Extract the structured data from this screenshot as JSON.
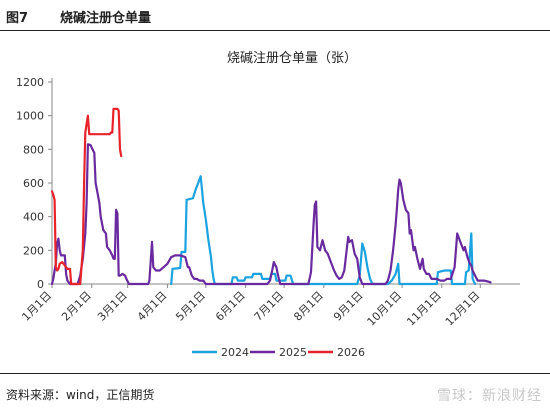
{
  "header": {
    "figure_no": "图7",
    "title": "烧碱注册仓单量"
  },
  "footer": {
    "source": "资料来源：wind，正信期货",
    "watermark": "雪球：新浪财经"
  },
  "colors": {
    "2024": "#1aa3e0",
    "2025": "#6a2a9f",
    "2026": "#e8232a"
  },
  "chart_data": {
    "type": "line",
    "title": "烧碱注册仓单量（张）",
    "xlabel": "",
    "ylabel": "",
    "ylim": [
      0,
      1200
    ],
    "yticks": [
      0,
      200,
      400,
      600,
      800,
      1000,
      1200
    ],
    "xlim": [
      0,
      365
    ],
    "xticks": [
      {
        "label": "1月1日",
        "day": 0
      },
      {
        "label": "2月1日",
        "day": 31
      },
      {
        "label": "3月1日",
        "day": 59
      },
      {
        "label": "4月1日",
        "day": 90
      },
      {
        "label": "5月1日",
        "day": 120
      },
      {
        "label": "6月1日",
        "day": 151
      },
      {
        "label": "7月1日",
        "day": 181
      },
      {
        "label": "8月1日",
        "day": 212
      },
      {
        "label": "9月1日",
        "day": 243
      },
      {
        "label": "10月1日",
        "day": 273
      },
      {
        "label": "11月1日",
        "day": 304
      },
      {
        "label": "12月1日",
        "day": 334
      }
    ],
    "legend_position": "bottom",
    "series": [
      {
        "name": "2024",
        "points": [
          [
            93,
            0
          ],
          [
            94,
            90
          ],
          [
            100,
            95
          ],
          [
            101,
            190
          ],
          [
            104,
            190
          ],
          [
            105,
            500
          ],
          [
            110,
            510
          ],
          [
            112,
            560
          ],
          [
            114,
            600
          ],
          [
            116,
            640
          ],
          [
            117,
            560
          ],
          [
            118,
            480
          ],
          [
            120,
            380
          ],
          [
            122,
            260
          ],
          [
            124,
            160
          ],
          [
            125,
            80
          ],
          [
            126,
            30
          ],
          [
            127,
            0
          ],
          [
            140,
            0
          ],
          [
            141,
            40
          ],
          [
            144,
            40
          ],
          [
            145,
            20
          ],
          [
            150,
            20
          ],
          [
            151,
            40
          ],
          [
            156,
            40
          ],
          [
            157,
            60
          ],
          [
            163,
            60
          ],
          [
            164,
            30
          ],
          [
            170,
            30
          ],
          [
            171,
            60
          ],
          [
            174,
            60
          ],
          [
            175,
            20
          ],
          [
            182,
            20
          ],
          [
            183,
            50
          ],
          [
            186,
            50
          ],
          [
            188,
            0
          ],
          [
            238,
            0
          ],
          [
            240,
            50
          ],
          [
            242,
            240
          ],
          [
            244,
            190
          ],
          [
            246,
            100
          ],
          [
            248,
            30
          ],
          [
            250,
            0
          ],
          [
            262,
            0
          ],
          [
            265,
            20
          ],
          [
            268,
            60
          ],
          [
            270,
            120
          ],
          [
            271,
            0
          ],
          [
            300,
            0
          ],
          [
            301,
            70
          ],
          [
            306,
            80
          ],
          [
            311,
            80
          ],
          [
            312,
            0
          ],
          [
            322,
            0
          ],
          [
            323,
            70
          ],
          [
            325,
            80
          ],
          [
            327,
            300
          ],
          [
            328,
            30
          ],
          [
            330,
            0
          ]
        ]
      },
      {
        "name": "2025",
        "points": [
          [
            0,
            0
          ],
          [
            1,
            30
          ],
          [
            2,
            80
          ],
          [
            3,
            120
          ],
          [
            4,
            240
          ],
          [
            5,
            270
          ],
          [
            6,
            200
          ],
          [
            7,
            170
          ],
          [
            10,
            170
          ],
          [
            11,
            60
          ],
          [
            12,
            20
          ],
          [
            14,
            0
          ],
          [
            20,
            0
          ],
          [
            22,
            50
          ],
          [
            24,
            150
          ],
          [
            26,
            300
          ],
          [
            27,
            480
          ],
          [
            28,
            830
          ],
          [
            30,
            825
          ],
          [
            31,
            810
          ],
          [
            33,
            780
          ],
          [
            34,
            600
          ],
          [
            35,
            560
          ],
          [
            37,
            480
          ],
          [
            38,
            400
          ],
          [
            40,
            320
          ],
          [
            42,
            300
          ],
          [
            43,
            220
          ],
          [
            45,
            200
          ],
          [
            47,
            170
          ],
          [
            48,
            150
          ],
          [
            49,
            150
          ],
          [
            50,
            440
          ],
          [
            51,
            420
          ],
          [
            52,
            50
          ],
          [
            53,
            50
          ],
          [
            55,
            60
          ],
          [
            57,
            50
          ],
          [
            58,
            30
          ],
          [
            60,
            0
          ],
          [
            75,
            0
          ],
          [
            76,
            20
          ],
          [
            78,
            250
          ],
          [
            79,
            100
          ],
          [
            81,
            80
          ],
          [
            84,
            80
          ],
          [
            87,
            100
          ],
          [
            90,
            120
          ],
          [
            93,
            160
          ],
          [
            96,
            170
          ],
          [
            100,
            170
          ],
          [
            104,
            160
          ],
          [
            106,
            100
          ],
          [
            107,
            100
          ],
          [
            109,
            50
          ],
          [
            111,
            30
          ],
          [
            113,
            30
          ],
          [
            115,
            20
          ],
          [
            118,
            20
          ],
          [
            120,
            0
          ],
          [
            168,
            0
          ],
          [
            170,
            20
          ],
          [
            172,
            90
          ],
          [
            173,
            130
          ],
          [
            175,
            100
          ],
          [
            176,
            60
          ],
          [
            177,
            30
          ],
          [
            178,
            0
          ],
          [
            200,
            0
          ],
          [
            202,
            70
          ],
          [
            204,
            360
          ],
          [
            205,
            470
          ],
          [
            206,
            490
          ],
          [
            207,
            220
          ],
          [
            209,
            200
          ],
          [
            211,
            260
          ],
          [
            213,
            200
          ],
          [
            215,
            180
          ],
          [
            218,
            120
          ],
          [
            220,
            80
          ],
          [
            222,
            50
          ],
          [
            224,
            30
          ],
          [
            226,
            40
          ],
          [
            228,
            80
          ],
          [
            231,
            280
          ],
          [
            232,
            250
          ],
          [
            234,
            260
          ],
          [
            236,
            180
          ],
          [
            238,
            150
          ],
          [
            240,
            40
          ],
          [
            242,
            0
          ],
          [
            260,
            0
          ],
          [
            262,
            20
          ],
          [
            264,
            80
          ],
          [
            266,
            200
          ],
          [
            268,
            350
          ],
          [
            269,
            450
          ],
          [
            270,
            560
          ],
          [
            271,
            620
          ],
          [
            272,
            600
          ],
          [
            274,
            500
          ],
          [
            276,
            440
          ],
          [
            278,
            420
          ],
          [
            279,
            300
          ],
          [
            280,
            320
          ],
          [
            282,
            200
          ],
          [
            283,
            220
          ],
          [
            285,
            150
          ],
          [
            287,
            90
          ],
          [
            289,
            150
          ],
          [
            290,
            90
          ],
          [
            292,
            60
          ],
          [
            294,
            60
          ],
          [
            296,
            30
          ],
          [
            300,
            30
          ],
          [
            303,
            20
          ],
          [
            306,
            20
          ],
          [
            308,
            30
          ],
          [
            311,
            30
          ],
          [
            314,
            100
          ],
          [
            316,
            300
          ],
          [
            317,
            280
          ],
          [
            318,
            260
          ],
          [
            319,
            240
          ],
          [
            321,
            200
          ],
          [
            322,
            220
          ],
          [
            324,
            160
          ],
          [
            326,
            120
          ],
          [
            327,
            110
          ],
          [
            328,
            80
          ],
          [
            330,
            50
          ],
          [
            332,
            20
          ],
          [
            337,
            20
          ],
          [
            340,
            15
          ],
          [
            342,
            10
          ]
        ]
      },
      {
        "name": "2026",
        "points": [
          [
            0,
            550
          ],
          [
            1,
            530
          ],
          [
            2,
            500
          ],
          [
            3,
            100
          ],
          [
            4,
            80
          ],
          [
            5,
            90
          ],
          [
            6,
            120
          ],
          [
            8,
            130
          ],
          [
            10,
            110
          ],
          [
            12,
            90
          ],
          [
            14,
            90
          ],
          [
            15,
            0
          ],
          [
            22,
            0
          ],
          [
            24,
            200
          ],
          [
            25,
            600
          ],
          [
            26,
            900
          ],
          [
            27,
            950
          ],
          [
            28,
            1000
          ],
          [
            29,
            890
          ],
          [
            45,
            890
          ],
          [
            46,
            900
          ],
          [
            47,
            900
          ],
          [
            48,
            1040
          ],
          [
            51,
            1040
          ],
          [
            52,
            1030
          ],
          [
            53,
            800
          ],
          [
            54,
            760
          ]
        ]
      }
    ]
  }
}
